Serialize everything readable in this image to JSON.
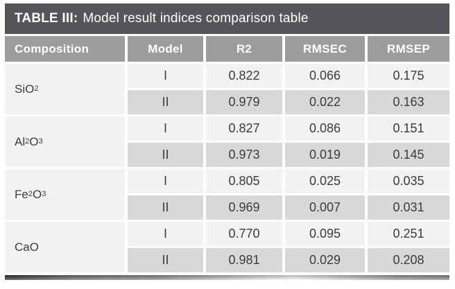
{
  "title": {
    "label": "TABLE III:",
    "caption": "Model result indices comparison table"
  },
  "columns": [
    "Composition",
    "Model",
    "R2",
    "RMSEC",
    "RMSEP"
  ],
  "colors": {
    "title_bar": "#55565A",
    "header_bg": "#9B9C9E",
    "row_light": "#F2F2F2",
    "row_dark": "#D8D8D9",
    "cell_text": "#3B3B3C",
    "header_text": "#FFFFFF"
  },
  "rows": [
    {
      "composition_plain": "SiO2",
      "formula": [
        {
          "text": "SiO"
        },
        {
          "text": "2",
          "sub": true
        }
      ],
      "models": [
        {
          "model": "I",
          "r2": "0.822",
          "rmsec": "0.066",
          "rmsep": "0.175"
        },
        {
          "model": "II",
          "r2": "0.979",
          "rmsec": "0.022",
          "rmsep": "0.163"
        }
      ]
    },
    {
      "composition_plain": "Al2O3",
      "formula": [
        {
          "text": "Al"
        },
        {
          "text": "2",
          "sub": true
        },
        {
          "text": "O"
        },
        {
          "text": "3",
          "sub": true
        }
      ],
      "models": [
        {
          "model": "I",
          "r2": "0.827",
          "rmsec": "0.086",
          "rmsep": "0.151"
        },
        {
          "model": "II",
          "r2": "0.973",
          "rmsec": "0.019",
          "rmsep": "0.145"
        }
      ]
    },
    {
      "composition_plain": "Fe2O3",
      "formula": [
        {
          "text": "Fe"
        },
        {
          "text": "2",
          "sub": true
        },
        {
          "text": "O"
        },
        {
          "text": "3",
          "sub": true
        }
      ],
      "models": [
        {
          "model": "I",
          "r2": "0.805",
          "rmsec": "0.025",
          "rmsep": "0.035"
        },
        {
          "model": "II",
          "r2": "0.969",
          "rmsec": "0.007",
          "rmsep": "0.031"
        }
      ]
    },
    {
      "composition_plain": "CaO",
      "formula": [
        {
          "text": "CaO"
        }
      ],
      "models": [
        {
          "model": "I",
          "r2": "0.770",
          "rmsec": "0.095",
          "rmsep": "0.251"
        },
        {
          "model": "II",
          "r2": "0.981",
          "rmsec": "0.029",
          "rmsep": "0.208"
        }
      ]
    }
  ]
}
